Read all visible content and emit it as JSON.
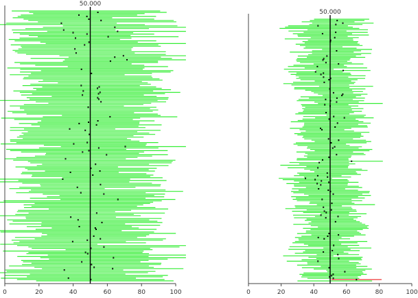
{
  "chart_data": [
    {
      "type": "interval",
      "title": "",
      "reference_value_label": "50.000",
      "reference_value": 50,
      "xlim": [
        0,
        100
      ],
      "x_ticks": [
        0,
        20,
        40,
        60,
        80,
        100
      ],
      "x_tick_labels": [
        "0",
        "20",
        "40",
        "60",
        "80",
        "100"
      ],
      "n_intervals": 200,
      "mean_center": 50,
      "interval_half_width_approx": 37,
      "covered_color": "#33ee33",
      "missed_color": "#ee2222",
      "mean_point_color": "#000000"
    },
    {
      "type": "interval",
      "title": "",
      "reference_value_label": "50.000",
      "reference_value": 50,
      "xlim": [
        0,
        100
      ],
      "x_ticks": [
        0,
        20,
        40,
        60,
        80,
        100
      ],
      "x_tick_labels": [
        "0",
        "20",
        "40",
        "60",
        "80",
        "100"
      ],
      "n_intervals": 200,
      "mean_center": 50,
      "interval_half_width_approx": 17,
      "covered_color": "#33ee33",
      "missed_color": "#ee2222",
      "mean_point_color": "#000000"
    }
  ]
}
